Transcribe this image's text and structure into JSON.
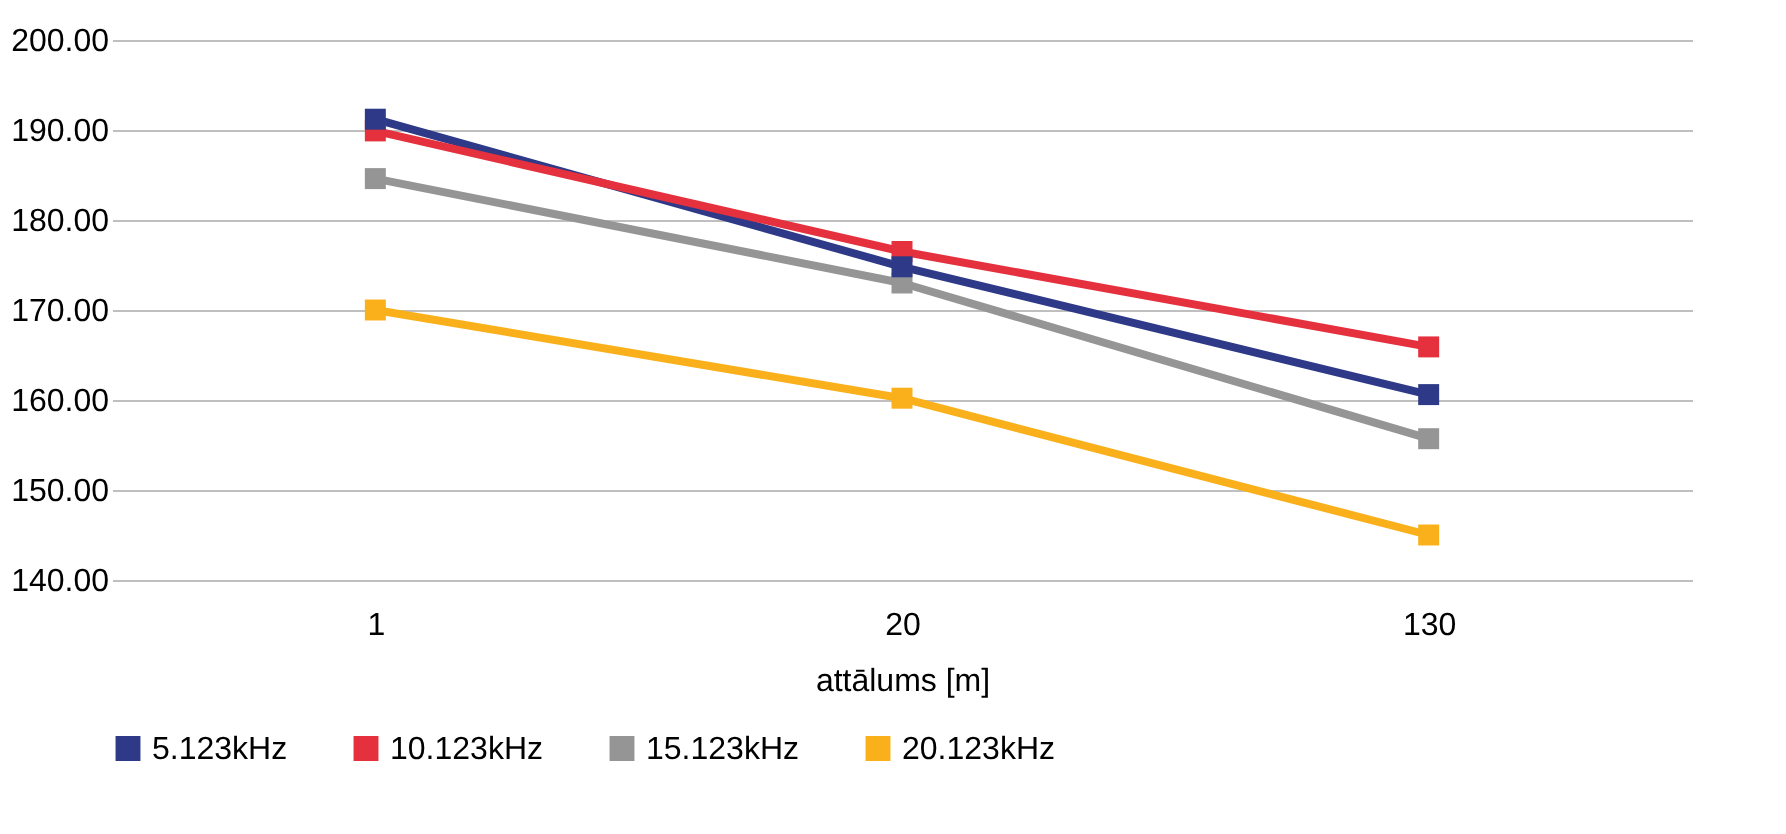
{
  "chart_data": {
    "type": "line",
    "xlabel": "attālums [m]",
    "categories": [
      "1",
      "20",
      "130"
    ],
    "series": [
      {
        "name": "5.123kHz",
        "color": "#2e3a87",
        "values": [
          191.2,
          174.8,
          160.6
        ]
      },
      {
        "name": "10.123kHz",
        "color": "#e5303e",
        "values": [
          189.9,
          176.5,
          165.9
        ]
      },
      {
        "name": "15.123kHz",
        "color": "#959595",
        "values": [
          184.6,
          173.0,
          155.7
        ]
      },
      {
        "name": "20.123kHz",
        "color": "#f9b01b",
        "values": [
          170.0,
          160.2,
          145.0
        ]
      }
    ],
    "ylim": [
      140,
      200
    ],
    "yticks": [
      {
        "value": 140,
        "label": "140.00"
      },
      {
        "value": 150,
        "label": "150.00"
      },
      {
        "value": 160,
        "label": "160.00"
      },
      {
        "value": 170,
        "label": "170.00"
      },
      {
        "value": 180,
        "label": "180.00"
      },
      {
        "value": 190,
        "label": "190.00"
      },
      {
        "value": 200,
        "label": "200.00"
      }
    ],
    "grid": "y",
    "legend": "bottom",
    "marker": "square",
    "line_style": "solid"
  }
}
